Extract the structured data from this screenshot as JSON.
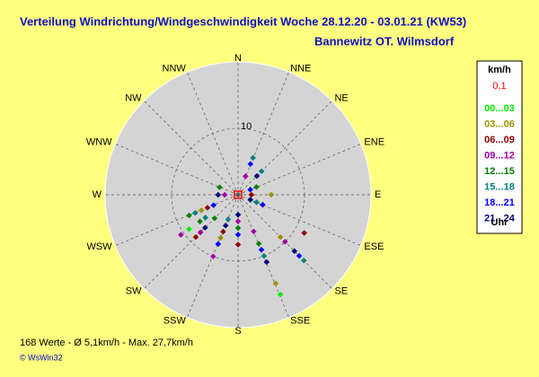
{
  "chart_data": {
    "type": "polar-scatter",
    "title": "Verteilung Windrichtung/Windgeschwindigkeit  Woche 28.12.20 - 03.01.21 (KW53)",
    "subtitle": "Bannewitz OT. Wilmsdorf",
    "directions": [
      "N",
      "NNE",
      "NE",
      "ENE",
      "E",
      "ESE",
      "SE",
      "SSE",
      "S",
      "SSW",
      "SW",
      "WSW",
      "W",
      "WNW",
      "NW",
      "NNW"
    ],
    "rlim": [
      0,
      20
    ],
    "rticks": [
      10
    ],
    "legend_title": "km/h",
    "calm_label": "0,1",
    "calm_color": "#ff0000",
    "legend_footer": "Uhr",
    "series": [
      {
        "name": "00...03",
        "color": "#00ee00",
        "theta": [
          157,
          157,
          135,
          235,
          180,
          202,
          45,
          112
        ],
        "values": [
          16.3,
          9,
          12,
          9,
          3,
          6,
          4,
          2
        ]
      },
      {
        "name": "03...06",
        "color": "#a09000",
        "theta": [
          157,
          157,
          225,
          202,
          135,
          247,
          112,
          90
        ],
        "values": [
          14.5,
          11,
          8,
          7,
          9,
          6,
          3,
          5
        ]
      },
      {
        "name": "06...09",
        "color": "#900000",
        "theta": [
          180,
          180,
          202,
          225,
          120,
          112,
          247,
          90
        ],
        "values": [
          7.5,
          5,
          6,
          9,
          11.5,
          4,
          5,
          2
        ]
      },
      {
        "name": "09...12",
        "color": "#a000a0",
        "theta": [
          235,
          225,
          202,
          157,
          135,
          180,
          22,
          270
        ],
        "values": [
          10.5,
          8,
          10,
          6,
          10,
          4,
          3,
          2
        ]
      },
      {
        "name": "12...15",
        "color": "#008000",
        "theta": [
          235,
          247,
          225,
          135,
          157,
          292,
          67,
          180
        ],
        "values": [
          7,
          8,
          5,
          13,
          8,
          3,
          3,
          5
        ]
      },
      {
        "name": "15...18",
        "color": "#008080",
        "theta": [
          247,
          235,
          22,
          45,
          157,
          135,
          202,
          112
        ],
        "values": [
          7,
          6,
          6,
          5,
          10,
          14,
          4,
          3
        ]
      },
      {
        "name": "18...21",
        "color": "#0000ff",
        "theta": [
          157,
          135,
          180,
          202,
          22,
          112,
          67,
          247
        ],
        "values": [
          9,
          13,
          6,
          8,
          5,
          4,
          2,
          4
        ]
      },
      {
        "name": "21...24",
        "color": "#000080",
        "theta": [
          157,
          135,
          225,
          180,
          270,
          112,
          45,
          202
        ],
        "values": [
          11,
          12,
          7,
          3,
          3,
          2,
          4,
          5
        ]
      }
    ],
    "footer": "168 Werte   -   Ø 5,1km/h  -  Max. 27,7km/h",
    "credit": "© WsWin32"
  }
}
